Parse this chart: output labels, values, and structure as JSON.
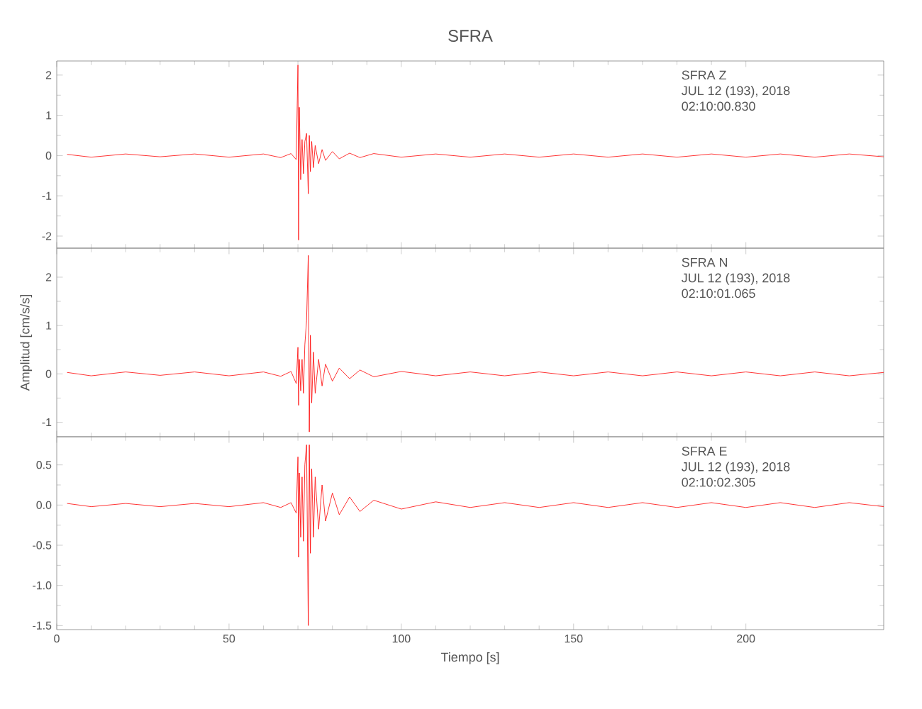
{
  "chart_data": [
    {
      "type": "line",
      "title": "SFRA",
      "annotations": [
        "SFRA   Z",
        "JUL 12 (193), 2018",
        "02:10:00.830"
      ],
      "xlim": [
        0,
        240
      ],
      "xticks": [
        0,
        50,
        100,
        150,
        200
      ],
      "ylim": [
        -2.3,
        2.35
      ],
      "yticks": [
        -2,
        -1,
        0,
        1,
        2
      ],
      "tick_labels": "y",
      "marker": "none",
      "x": [
        3,
        10,
        20,
        30,
        40,
        50,
        60,
        65,
        68,
        69.5,
        70,
        70.2,
        70.4,
        70.8,
        71.2,
        71.6,
        72,
        72.5,
        73,
        73.3,
        73.6,
        74,
        74.5,
        75,
        76,
        77,
        78,
        80,
        82,
        85,
        88,
        92,
        100,
        110,
        120,
        130,
        140,
        150,
        160,
        170,
        180,
        190,
        200,
        210,
        220,
        230,
        240
      ],
      "series": [
        {
          "color": "#ff0000",
          "values": [
            0.03,
            -0.04,
            0.04,
            -0.03,
            0.04,
            -0.04,
            0.04,
            -0.05,
            0.05,
            -0.1,
            2.25,
            -2.1,
            1.2,
            -0.6,
            0.4,
            -0.45,
            0.35,
            0.55,
            -0.95,
            0.5,
            -0.4,
            0.35,
            -0.3,
            0.25,
            -0.2,
            0.15,
            -0.12,
            0.1,
            -0.08,
            0.06,
            -0.05,
            0.05,
            -0.04,
            0.04,
            -0.04,
            0.04,
            -0.04,
            0.04,
            -0.04,
            0.04,
            -0.04,
            0.04,
            -0.04,
            0.04,
            -0.04,
            0.04,
            -0.03
          ]
        }
      ]
    },
    {
      "type": "line",
      "ylabel": "Amplitud [cm/s/s]",
      "annotations": [
        "SFRA   N",
        "JUL 12 (193), 2018",
        "02:10:01.065"
      ],
      "xlim": [
        0,
        240
      ],
      "xticks": [
        0,
        50,
        100,
        150,
        200
      ],
      "ylim": [
        -1.3,
        2.6
      ],
      "yticks": [
        -1,
        0,
        1,
        2
      ],
      "tick_labels": "y",
      "marker": "none",
      "x": [
        3,
        10,
        20,
        30,
        40,
        50,
        60,
        65,
        68,
        69.5,
        70,
        70.2,
        70.4,
        70.8,
        71.2,
        71.6,
        72,
        72.5,
        73,
        73.3,
        73.6,
        74,
        74.5,
        75,
        76,
        77,
        78,
        80,
        82,
        85,
        88,
        92,
        100,
        110,
        120,
        130,
        140,
        150,
        160,
        170,
        180,
        190,
        200,
        210,
        220,
        230,
        240
      ],
      "series": [
        {
          "color": "#ff0000",
          "values": [
            0.03,
            -0.04,
            0.04,
            -0.03,
            0.04,
            -0.04,
            0.04,
            -0.05,
            0.05,
            -0.2,
            0.55,
            -0.65,
            0.3,
            -0.35,
            0.3,
            -0.4,
            0.6,
            1.1,
            2.45,
            -1.2,
            0.8,
            -0.6,
            0.45,
            -0.4,
            0.3,
            -0.25,
            0.2,
            -0.15,
            0.12,
            -0.1,
            0.08,
            -0.06,
            0.05,
            -0.04,
            0.04,
            -0.04,
            0.04,
            -0.04,
            0.04,
            -0.04,
            0.04,
            -0.04,
            0.04,
            -0.04,
            0.04,
            -0.04,
            0.03
          ]
        }
      ]
    },
    {
      "type": "line",
      "xlabel": "Tiempo [s]",
      "annotations": [
        "SFRA   E",
        "JUL 12 (193), 2018",
        "02:10:02.305"
      ],
      "xlim": [
        0,
        240
      ],
      "xticks": [
        0,
        50,
        100,
        150,
        200
      ],
      "ylim": [
        -1.55,
        0.85
      ],
      "yticks": [
        {
          "value": -1.5,
          "label": "-1.5"
        },
        {
          "value": -1,
          "label": "-1.0"
        },
        {
          "value": -0.5,
          "label": "-0.5"
        },
        {
          "value": 0,
          "label": "0.0"
        },
        {
          "value": 0.5,
          "label": "0.5"
        }
      ],
      "marker": "none",
      "x": [
        3,
        10,
        20,
        30,
        40,
        50,
        60,
        65,
        68,
        69.5,
        70,
        70.2,
        70.4,
        70.8,
        71.2,
        71.6,
        72,
        72.5,
        73,
        73.3,
        73.6,
        74,
        74.5,
        75,
        76,
        77,
        78,
        80,
        82,
        85,
        88,
        92,
        100,
        110,
        120,
        130,
        140,
        150,
        160,
        170,
        180,
        190,
        200,
        210,
        220,
        230,
        240
      ],
      "series": [
        {
          "color": "#ff0000",
          "values": [
            0.02,
            -0.02,
            0.02,
            -0.02,
            0.02,
            -0.02,
            0.03,
            -0.03,
            0.03,
            -0.1,
            0.6,
            -0.65,
            0.4,
            -0.4,
            0.35,
            -0.45,
            0.5,
            0.75,
            -1.5,
            0.75,
            -0.6,
            0.45,
            -0.4,
            0.35,
            -0.3,
            0.25,
            -0.2,
            0.15,
            -0.12,
            0.1,
            -0.08,
            0.06,
            -0.05,
            0.04,
            -0.03,
            0.03,
            -0.03,
            0.03,
            -0.03,
            0.03,
            -0.03,
            0.03,
            -0.03,
            0.03,
            -0.03,
            0.03,
            -0.02
          ]
        }
      ]
    }
  ]
}
